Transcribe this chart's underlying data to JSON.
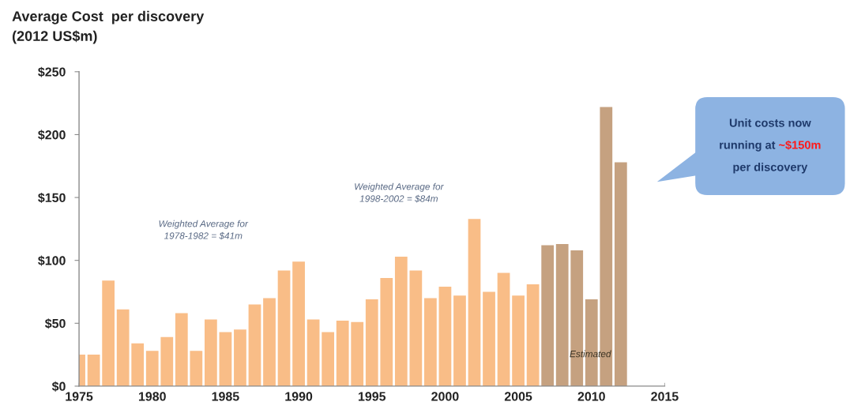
{
  "chart_data": {
    "type": "bar",
    "title": "Average Cost  per discovery",
    "subtitle": "(2012 US$m)",
    "x": [
      1975,
      1976,
      1977,
      1978,
      1979,
      1980,
      1981,
      1982,
      1983,
      1984,
      1985,
      1986,
      1987,
      1988,
      1989,
      1990,
      1991,
      1992,
      1993,
      1994,
      1995,
      1996,
      1997,
      1998,
      1999,
      2000,
      2001,
      2002,
      2003,
      2004,
      2005,
      2006,
      2007,
      2008,
      2009,
      2010,
      2011,
      2012
    ],
    "values": [
      25,
      25,
      84,
      61,
      34,
      28,
      39,
      58,
      28,
      53,
      43,
      45,
      65,
      70,
      92,
      99,
      53,
      43,
      52,
      51,
      69,
      86,
      103,
      92,
      70,
      79,
      72,
      133,
      75,
      90,
      72,
      81,
      112,
      113,
      108,
      69,
      222,
      178
    ],
    "colors": [
      "#f9bd87",
      "#f9bd87",
      "#f9bd87",
      "#f9bd87",
      "#f9bd87",
      "#f9bd87",
      "#f9bd87",
      "#f9bd87",
      "#f9bd87",
      "#f9bd87",
      "#f9bd87",
      "#f9bd87",
      "#f9bd87",
      "#f9bd87",
      "#f9bd87",
      "#f9bd87",
      "#f9bd87",
      "#f9bd87",
      "#f9bd87",
      "#f9bd87",
      "#f9bd87",
      "#f9bd87",
      "#f9bd87",
      "#f9bd87",
      "#f9bd87",
      "#f9bd87",
      "#f9bd87",
      "#f9bd87",
      "#f9bd87",
      "#f9bd87",
      "#f9bd87",
      "#f9bd87",
      "#c5a180",
      "#c5a180",
      "#c5a180",
      "#c5a180",
      "#c5a180",
      "#c5a180"
    ],
    "xlim": [
      1975,
      2015
    ],
    "xticks": [
      1975,
      1980,
      1985,
      1990,
      1995,
      2000,
      2005,
      2010,
      2015
    ],
    "ylim": [
      0,
      250
    ],
    "yticks": [
      {
        "value": 0,
        "label": "$0"
      },
      {
        "value": 50,
        "label": "$50"
      },
      {
        "value": 100,
        "label": "$100"
      },
      {
        "value": 150,
        "label": "$150"
      },
      {
        "value": 200,
        "label": "$200"
      },
      {
        "value": 250,
        "label": "$250"
      }
    ],
    "annotations": [
      "Weighted Average for\n1978-1982 = $41m",
      "Weighted Average for\n1998-2002 = $84m",
      "Estimated",
      "Unit costs now",
      "running at",
      "~$150m",
      "per discovery"
    ]
  }
}
